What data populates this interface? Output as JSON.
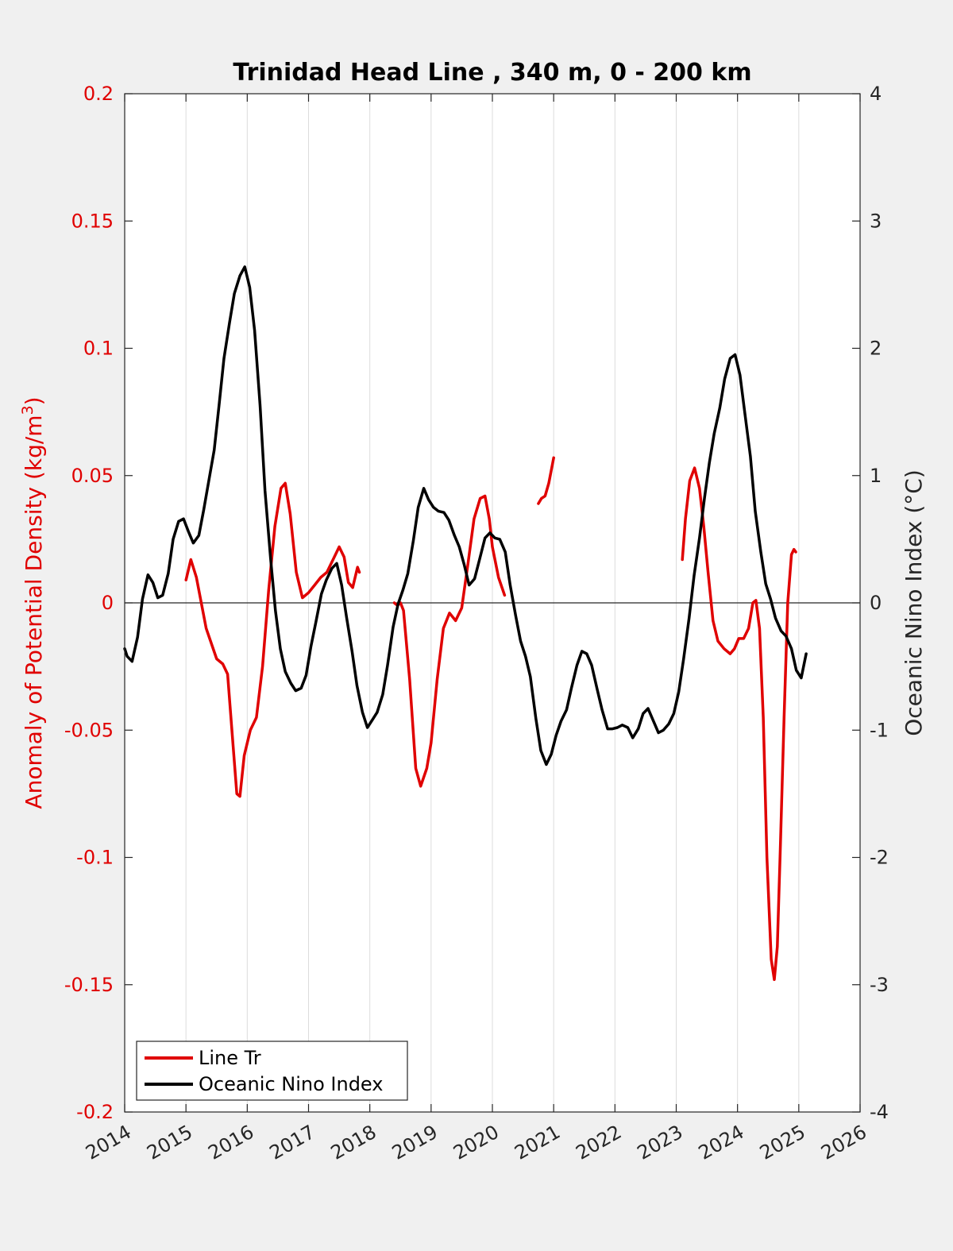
{
  "chart_data": {
    "type": "line",
    "title": "Trinidad Head Line , 340 m, 0 - 200 km",
    "ylabel_left_parts": [
      "Anomaly of Potential Density (kg/m",
      "3",
      ")"
    ],
    "ylabel_right": "Oceanic Nino Index (°C)",
    "xlim": [
      2014,
      2026
    ],
    "x_ticks": [
      "2014",
      "2015",
      "2016",
      "2017",
      "2018",
      "2019",
      "2020",
      "2021",
      "2022",
      "2023",
      "2024",
      "2025",
      "2026"
    ],
    "ylim_left": [
      -0.2,
      0.2
    ],
    "y_ticks_left": [
      "-0.2",
      "-0.15",
      "-0.1",
      "-0.05",
      "0",
      "0.05",
      "0.1",
      "0.15",
      "0.2"
    ],
    "ylim_right": [
      -4,
      4
    ],
    "y_ticks_right": [
      "-4",
      "-3",
      "-2",
      "-1",
      "0",
      "1",
      "2",
      "3",
      "4"
    ],
    "grid": "vertical",
    "legend_position": "bottom-left",
    "colors": {
      "left_axis": "#e00000",
      "density": "#e00000",
      "oni": "#000000"
    },
    "series": [
      {
        "name": "Line Tr",
        "axis": "left",
        "color": "#e00000",
        "segments": [
          [
            [
              2015.0,
              0.009
            ],
            [
              2015.08,
              0.017
            ],
            [
              2015.17,
              0.01
            ],
            [
              2015.33,
              -0.01
            ],
            [
              2015.5,
              -0.022
            ],
            [
              2015.6,
              -0.024
            ],
            [
              2015.68,
              -0.028
            ],
            [
              2015.75,
              -0.05
            ],
            [
              2015.83,
              -0.075
            ],
            [
              2015.88,
              -0.076
            ],
            [
              2015.95,
              -0.06
            ],
            [
              2016.05,
              -0.05
            ],
            [
              2016.15,
              -0.045
            ],
            [
              2016.25,
              -0.025
            ],
            [
              2016.35,
              0.005
            ],
            [
              2016.45,
              0.03
            ],
            [
              2016.55,
              0.045
            ],
            [
              2016.62,
              0.047
            ],
            [
              2016.7,
              0.035
            ],
            [
              2016.8,
              0.012
            ],
            [
              2016.9,
              0.002
            ],
            [
              2017.0,
              0.004
            ],
            [
              2017.1,
              0.007
            ],
            [
              2017.2,
              0.01
            ],
            [
              2017.3,
              0.012
            ],
            [
              2017.4,
              0.017
            ],
            [
              2017.5,
              0.022
            ],
            [
              2017.58,
              0.018
            ],
            [
              2017.65,
              0.008
            ],
            [
              2017.72,
              0.006
            ],
            [
              2017.8,
              0.014
            ],
            [
              2017.83,
              0.012
            ]
          ],
          [
            [
              2018.4,
              0.0
            ],
            [
              2018.45,
              -0.001
            ],
            [
              2018.5,
              0.0
            ],
            [
              2018.55,
              -0.003
            ],
            [
              2018.65,
              -0.03
            ],
            [
              2018.75,
              -0.065
            ],
            [
              2018.83,
              -0.072
            ],
            [
              2018.93,
              -0.065
            ],
            [
              2019.0,
              -0.055
            ],
            [
              2019.1,
              -0.03
            ],
            [
              2019.2,
              -0.01
            ],
            [
              2019.3,
              -0.004
            ],
            [
              2019.4,
              -0.007
            ],
            [
              2019.5,
              -0.002
            ],
            [
              2019.6,
              0.015
            ],
            [
              2019.7,
              0.033
            ],
            [
              2019.8,
              0.041
            ],
            [
              2019.88,
              0.042
            ],
            [
              2019.95,
              0.033
            ],
            [
              2020.0,
              0.022
            ],
            [
              2020.1,
              0.01
            ],
            [
              2020.2,
              0.003
            ]
          ],
          [
            [
              2020.75,
              0.039
            ],
            [
              2020.8,
              0.041
            ],
            [
              2020.86,
              0.042
            ],
            [
              2020.92,
              0.047
            ],
            [
              2021.0,
              0.057
            ]
          ],
          [
            [
              2023.1,
              0.017
            ],
            [
              2023.15,
              0.033
            ],
            [
              2023.22,
              0.048
            ],
            [
              2023.3,
              0.053
            ],
            [
              2023.38,
              0.045
            ],
            [
              2023.45,
              0.03
            ],
            [
              2023.52,
              0.012
            ],
            [
              2023.6,
              -0.007
            ],
            [
              2023.68,
              -0.015
            ],
            [
              2023.78,
              -0.018
            ],
            [
              2023.88,
              -0.02
            ],
            [
              2023.95,
              -0.018
            ],
            [
              2024.02,
              -0.014
            ],
            [
              2024.1,
              -0.014
            ],
            [
              2024.18,
              -0.01
            ],
            [
              2024.25,
              0.0
            ],
            [
              2024.3,
              0.001
            ],
            [
              2024.36,
              -0.01
            ],
            [
              2024.42,
              -0.045
            ],
            [
              2024.48,
              -0.1
            ],
            [
              2024.55,
              -0.14
            ],
            [
              2024.6,
              -0.148
            ],
            [
              2024.65,
              -0.135
            ],
            [
              2024.7,
              -0.095
            ],
            [
              2024.76,
              -0.045
            ],
            [
              2024.82,
              0.0
            ],
            [
              2024.88,
              0.019
            ],
            [
              2024.92,
              0.021
            ],
            [
              2024.95,
              0.02
            ]
          ]
        ]
      },
      {
        "name": "Oceanic Nino Index",
        "axis": "right",
        "color": "#000000",
        "segments": [
          [
            [
              2014.0,
              -0.36
            ],
            [
              2014.04,
              -0.42
            ],
            [
              2014.12,
              -0.46
            ],
            [
              2014.21,
              -0.27
            ],
            [
              2014.29,
              0.03
            ],
            [
              2014.38,
              0.22
            ],
            [
              2014.46,
              0.16
            ],
            [
              2014.54,
              0.04
            ],
            [
              2014.62,
              0.06
            ],
            [
              2014.71,
              0.23
            ],
            [
              2014.79,
              0.5
            ],
            [
              2014.88,
              0.64
            ],
            [
              2014.96,
              0.66
            ],
            [
              2015.04,
              0.56
            ],
            [
              2015.12,
              0.47
            ],
            [
              2015.21,
              0.53
            ],
            [
              2015.29,
              0.73
            ],
            [
              2015.38,
              0.98
            ],
            [
              2015.46,
              1.2
            ],
            [
              2015.54,
              1.55
            ],
            [
              2015.62,
              1.92
            ],
            [
              2015.71,
              2.2
            ],
            [
              2015.79,
              2.43
            ],
            [
              2015.88,
              2.57
            ],
            [
              2015.96,
              2.64
            ],
            [
              2016.04,
              2.48
            ],
            [
              2016.12,
              2.14
            ],
            [
              2016.21,
              1.55
            ],
            [
              2016.29,
              0.88
            ],
            [
              2016.38,
              0.35
            ],
            [
              2016.46,
              -0.06
            ],
            [
              2016.54,
              -0.36
            ],
            [
              2016.62,
              -0.54
            ],
            [
              2016.71,
              -0.63
            ],
            [
              2016.79,
              -0.69
            ],
            [
              2016.88,
              -0.67
            ],
            [
              2016.96,
              -0.57
            ],
            [
              2017.04,
              -0.34
            ],
            [
              2017.12,
              -0.15
            ],
            [
              2017.21,
              0.07
            ],
            [
              2017.29,
              0.18
            ],
            [
              2017.38,
              0.27
            ],
            [
              2017.46,
              0.31
            ],
            [
              2017.54,
              0.14
            ],
            [
              2017.62,
              -0.11
            ],
            [
              2017.71,
              -0.38
            ],
            [
              2017.79,
              -0.65
            ],
            [
              2017.88,
              -0.86
            ],
            [
              2017.96,
              -0.98
            ],
            [
              2018.04,
              -0.92
            ],
            [
              2018.12,
              -0.86
            ],
            [
              2018.21,
              -0.72
            ],
            [
              2018.29,
              -0.49
            ],
            [
              2018.38,
              -0.19
            ],
            [
              2018.46,
              -0.01
            ],
            [
              2018.54,
              0.1
            ],
            [
              2018.62,
              0.23
            ],
            [
              2018.71,
              0.49
            ],
            [
              2018.79,
              0.75
            ],
            [
              2018.88,
              0.9
            ],
            [
              2018.96,
              0.81
            ],
            [
              2019.04,
              0.75
            ],
            [
              2019.12,
              0.72
            ],
            [
              2019.21,
              0.71
            ],
            [
              2019.29,
              0.65
            ],
            [
              2019.38,
              0.53
            ],
            [
              2019.46,
              0.44
            ],
            [
              2019.54,
              0.3
            ],
            [
              2019.62,
              0.14
            ],
            [
              2019.71,
              0.19
            ],
            [
              2019.79,
              0.34
            ],
            [
              2019.88,
              0.51
            ],
            [
              2019.96,
              0.55
            ],
            [
              2020.04,
              0.51
            ],
            [
              2020.12,
              0.5
            ],
            [
              2020.21,
              0.4
            ],
            [
              2020.29,
              0.14
            ],
            [
              2020.38,
              -0.1
            ],
            [
              2020.46,
              -0.3
            ],
            [
              2020.54,
              -0.42
            ],
            [
              2020.62,
              -0.58
            ],
            [
              2020.71,
              -0.91
            ],
            [
              2020.79,
              -1.16
            ],
            [
              2020.88,
              -1.27
            ],
            [
              2020.96,
              -1.19
            ],
            [
              2021.04,
              -1.04
            ],
            [
              2021.12,
              -0.93
            ],
            [
              2021.21,
              -0.84
            ],
            [
              2021.29,
              -0.67
            ],
            [
              2021.38,
              -0.49
            ],
            [
              2021.46,
              -0.38
            ],
            [
              2021.54,
              -0.4
            ],
            [
              2021.62,
              -0.49
            ],
            [
              2021.71,
              -0.68
            ],
            [
              2021.79,
              -0.84
            ],
            [
              2021.88,
              -0.99
            ],
            [
              2021.96,
              -0.99
            ],
            [
              2022.04,
              -0.98
            ],
            [
              2022.12,
              -0.96
            ],
            [
              2022.21,
              -0.98
            ],
            [
              2022.29,
              -1.06
            ],
            [
              2022.38,
              -0.99
            ],
            [
              2022.46,
              -0.87
            ],
            [
              2022.54,
              -0.83
            ],
            [
              2022.62,
              -0.92
            ],
            [
              2022.71,
              -1.02
            ],
            [
              2022.79,
              -1.0
            ],
            [
              2022.88,
              -0.95
            ],
            [
              2022.96,
              -0.87
            ],
            [
              2023.04,
              -0.7
            ],
            [
              2023.12,
              -0.44
            ],
            [
              2023.21,
              -0.12
            ],
            [
              2023.29,
              0.21
            ],
            [
              2023.38,
              0.51
            ],
            [
              2023.46,
              0.82
            ],
            [
              2023.54,
              1.1
            ],
            [
              2023.62,
              1.33
            ],
            [
              2023.71,
              1.53
            ],
            [
              2023.79,
              1.76
            ],
            [
              2023.88,
              1.92
            ],
            [
              2023.96,
              1.95
            ],
            [
              2024.04,
              1.79
            ],
            [
              2024.12,
              1.49
            ],
            [
              2024.21,
              1.15
            ],
            [
              2024.29,
              0.72
            ],
            [
              2024.38,
              0.4
            ],
            [
              2024.46,
              0.15
            ],
            [
              2024.54,
              0.03
            ],
            [
              2024.62,
              -0.12
            ],
            [
              2024.71,
              -0.22
            ],
            [
              2024.79,
              -0.26
            ],
            [
              2024.88,
              -0.36
            ],
            [
              2024.96,
              -0.53
            ],
            [
              2025.04,
              -0.59
            ],
            [
              2025.12,
              -0.4
            ]
          ]
        ]
      }
    ]
  }
}
